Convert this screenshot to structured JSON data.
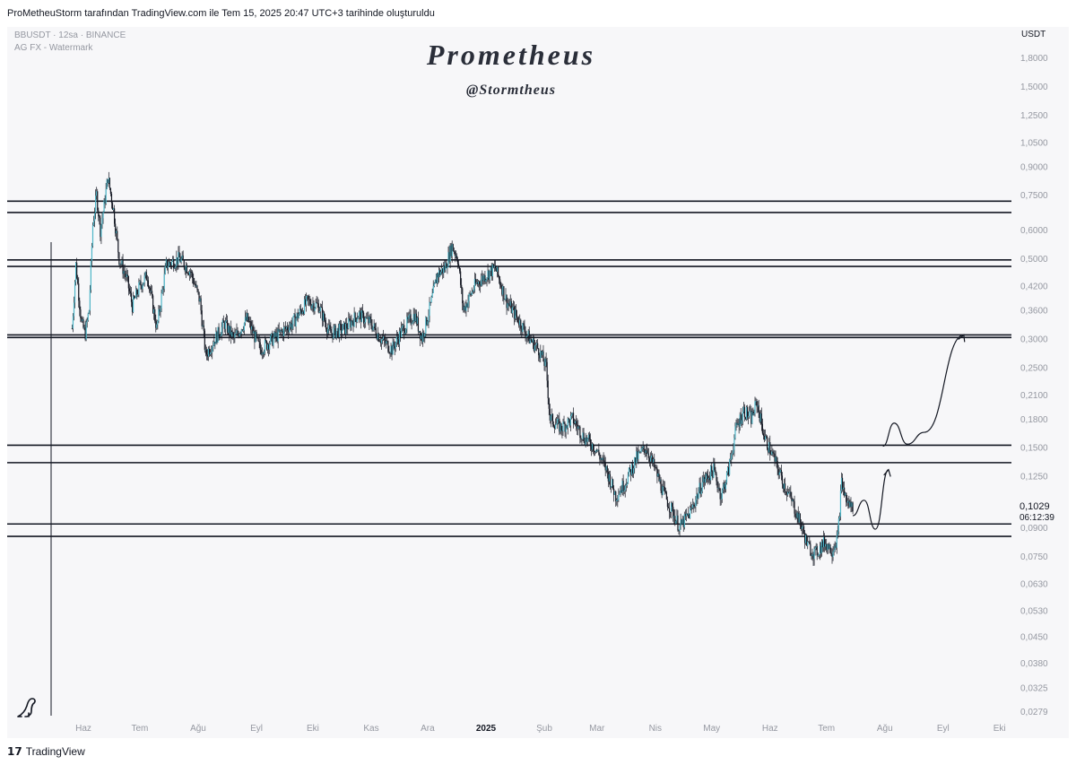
{
  "header": {
    "credit": "ProMetheuStorm tarafından TradingView.com ile Tem 15, 2025 20:47 UTC+3 tarihinde oluşturuldu"
  },
  "legend": {
    "symbol_line": "BBUSDT · 12sa · BINANCE",
    "indicator_line": "AG FX - Watermark"
  },
  "watermark": {
    "title": "Prometheus",
    "handle": "@Stormtheus"
  },
  "currency": "USDT",
  "last_price": {
    "value": "0,1029",
    "countdown": "06:12:39"
  },
  "footer": {
    "brand_mark": "𝟭𝟳",
    "brand": "TradingView"
  },
  "chart_data": {
    "type": "candlestick",
    "symbol": "BBUSDT",
    "interval": "12sa",
    "exchange": "BINANCE",
    "y_scale": "log",
    "ylim": [
      0.0279,
      1.8
    ],
    "x_axis_ticks": [
      "Haz",
      "Tem",
      "Ağu",
      "Eyl",
      "Eki",
      "Kas",
      "Ara",
      "2025",
      "Şub",
      "Mar",
      "Nis",
      "May",
      "Haz",
      "Tem",
      "Ağu",
      "Eyl",
      "Eki"
    ],
    "x_axis_bold": [
      "2025"
    ],
    "y_axis_ticks": [
      {
        "v": 1.8,
        "label": "1,8000"
      },
      {
        "v": 1.5,
        "label": "1,5000"
      },
      {
        "v": 1.25,
        "label": "1,2500"
      },
      {
        "v": 1.05,
        "label": "1,0500"
      },
      {
        "v": 0.9,
        "label": "0,9000"
      },
      {
        "v": 0.75,
        "label": "0,7500"
      },
      {
        "v": 0.6,
        "label": "0,6000"
      },
      {
        "v": 0.5,
        "label": "0,5000"
      },
      {
        "v": 0.42,
        "label": "0,4200"
      },
      {
        "v": 0.36,
        "label": "0,3600"
      },
      {
        "v": 0.3,
        "label": "0,3000"
      },
      {
        "v": 0.25,
        "label": "0,2500"
      },
      {
        "v": 0.21,
        "label": "0,2100"
      },
      {
        "v": 0.18,
        "label": "0,1800"
      },
      {
        "v": 0.15,
        "label": "0,1500"
      },
      {
        "v": 0.125,
        "label": "0,1250"
      },
      {
        "v": 0.09,
        "label": "0,0900"
      },
      {
        "v": 0.075,
        "label": "0,0750"
      },
      {
        "v": 0.063,
        "label": "0,0630"
      },
      {
        "v": 0.053,
        "label": "0,0530"
      },
      {
        "v": 0.045,
        "label": "0,0450"
      },
      {
        "v": 0.038,
        "label": "0,0380"
      },
      {
        "v": 0.0325,
        "label": "0,0325"
      },
      {
        "v": 0.0279,
        "label": "0,0279"
      }
    ],
    "horizontal_levels": [
      0.72,
      0.67,
      0.495,
      0.475,
      0.307,
      0.302,
      0.152,
      0.136,
      0.092,
      0.085
    ],
    "price_path": [
      [
        "2024-05-26",
        0.32
      ],
      [
        "2024-05-28",
        0.48
      ],
      [
        "2024-05-31",
        0.33
      ],
      [
        "2024-06-02",
        0.31
      ],
      [
        "2024-06-04",
        0.36
      ],
      [
        "2024-06-06",
        0.62
      ],
      [
        "2024-06-08",
        0.75
      ],
      [
        "2024-06-10",
        0.6
      ],
      [
        "2024-06-12",
        0.7
      ],
      [
        "2024-06-14",
        0.84
      ],
      [
        "2024-06-17",
        0.68
      ],
      [
        "2024-06-20",
        0.5
      ],
      [
        "2024-06-24",
        0.44
      ],
      [
        "2024-06-27",
        0.37
      ],
      [
        "2024-07-01",
        0.42
      ],
      [
        "2024-07-05",
        0.45
      ],
      [
        "2024-07-10",
        0.32
      ],
      [
        "2024-07-15",
        0.48
      ],
      [
        "2024-07-22",
        0.5
      ],
      [
        "2024-07-28",
        0.46
      ],
      [
        "2024-08-02",
        0.38
      ],
      [
        "2024-08-05",
        0.27
      ],
      [
        "2024-08-10",
        0.3
      ],
      [
        "2024-08-15",
        0.33
      ],
      [
        "2024-08-20",
        0.3
      ],
      [
        "2024-08-27",
        0.34
      ],
      [
        "2024-09-03",
        0.28
      ],
      [
        "2024-09-10",
        0.3
      ],
      [
        "2024-09-20",
        0.33
      ],
      [
        "2024-09-28",
        0.38
      ],
      [
        "2024-10-04",
        0.37
      ],
      [
        "2024-10-10",
        0.31
      ],
      [
        "2024-10-18",
        0.32
      ],
      [
        "2024-10-25",
        0.35
      ],
      [
        "2024-11-01",
        0.33
      ],
      [
        "2024-11-06",
        0.3
      ],
      [
        "2024-11-12",
        0.28
      ],
      [
        "2024-11-18",
        0.32
      ],
      [
        "2024-11-24",
        0.35
      ],
      [
        "2024-11-28",
        0.3
      ],
      [
        "2024-12-03",
        0.38
      ],
      [
        "2024-12-06",
        0.45
      ],
      [
        "2024-12-10",
        0.47
      ],
      [
        "2024-12-14",
        0.54
      ],
      [
        "2024-12-17",
        0.5
      ],
      [
        "2024-12-20",
        0.36
      ],
      [
        "2024-12-26",
        0.42
      ],
      [
        "2025-01-01",
        0.45
      ],
      [
        "2025-01-06",
        0.47
      ],
      [
        "2025-01-12",
        0.38
      ],
      [
        "2025-01-18",
        0.34
      ],
      [
        "2025-01-24",
        0.3
      ],
      [
        "2025-01-29",
        0.28
      ],
      [
        "2025-02-02",
        0.25
      ],
      [
        "2025-02-04",
        0.18
      ],
      [
        "2025-02-10",
        0.17
      ],
      [
        "2025-02-16",
        0.18
      ],
      [
        "2025-02-22",
        0.16
      ],
      [
        "2025-02-28",
        0.15
      ],
      [
        "2025-03-06",
        0.13
      ],
      [
        "2025-03-11",
        0.11
      ],
      [
        "2025-03-16",
        0.12
      ],
      [
        "2025-03-22",
        0.14
      ],
      [
        "2025-03-27",
        0.15
      ],
      [
        "2025-04-01",
        0.13
      ],
      [
        "2025-04-06",
        0.11
      ],
      [
        "2025-04-10",
        0.1
      ],
      [
        "2025-04-14",
        0.09
      ],
      [
        "2025-04-20",
        0.1
      ],
      [
        "2025-04-26",
        0.12
      ],
      [
        "2025-05-02",
        0.13
      ],
      [
        "2025-05-06",
        0.11
      ],
      [
        "2025-05-10",
        0.13
      ],
      [
        "2025-05-14",
        0.17
      ],
      [
        "2025-05-18",
        0.19
      ],
      [
        "2025-05-22",
        0.18
      ],
      [
        "2025-05-25",
        0.2
      ],
      [
        "2025-05-29",
        0.16
      ],
      [
        "2025-06-03",
        0.14
      ],
      [
        "2025-06-08",
        0.12
      ],
      [
        "2025-06-13",
        0.105
      ],
      [
        "2025-06-18",
        0.09
      ],
      [
        "2025-06-21",
        0.08
      ],
      [
        "2025-06-25",
        0.076
      ],
      [
        "2025-06-30",
        0.082
      ],
      [
        "2025-07-04",
        0.078
      ],
      [
        "2025-07-07",
        0.085
      ],
      [
        "2025-07-09",
        0.12
      ],
      [
        "2025-07-12",
        0.105
      ],
      [
        "2025-07-15",
        0.1029
      ]
    ],
    "annotations": [
      {
        "type": "projection",
        "points": [
          [
            "2025-07-15",
            0.097
          ],
          [
            "2025-07-21",
            0.107
          ],
          [
            "2025-07-27",
            0.089
          ],
          [
            "2025-08-03",
            0.13
          ]
        ]
      },
      {
        "type": "projection",
        "points": [
          [
            "2025-07-31",
            0.151
          ],
          [
            "2025-08-06",
            0.175
          ],
          [
            "2025-08-13",
            0.153
          ],
          [
            "2025-08-22",
            0.165
          ],
          [
            "2025-09-12",
            0.307
          ]
        ]
      }
    ]
  }
}
